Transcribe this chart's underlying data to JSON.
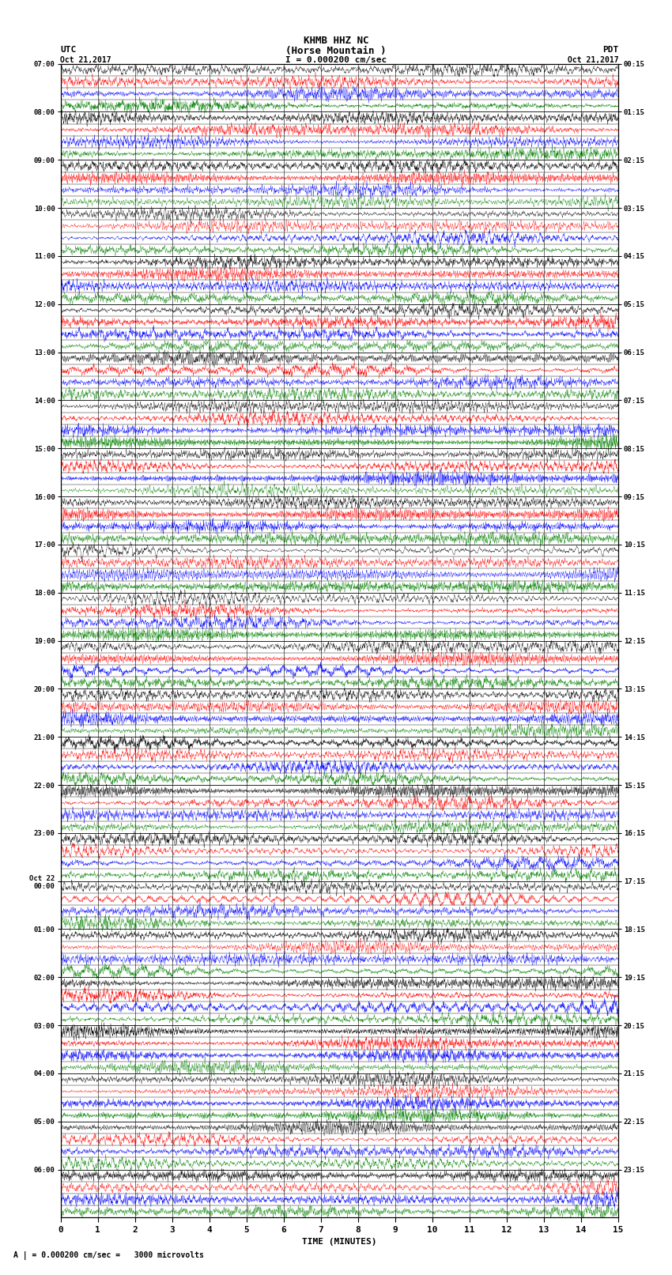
{
  "title_line1": "KHMB HHZ NC",
  "title_line2": "(Horse Mountain )",
  "scale_label": "I = 0.000200 cm/sec",
  "utc_label": "UTC",
  "pdt_label": "PDT",
  "date_left": "Oct 21,2017",
  "date_right": "Oct 21,2017",
  "bottom_note": "A | = 0.000200 cm/sec =   3000 microvolts",
  "xlabel": "TIME (MINUTES)",
  "left_times": [
    "07:00",
    "08:00",
    "09:00",
    "10:00",
    "11:00",
    "12:00",
    "13:00",
    "14:00",
    "15:00",
    "16:00",
    "17:00",
    "18:00",
    "19:00",
    "20:00",
    "21:00",
    "22:00",
    "23:00",
    "Oct 22\n00:00",
    "01:00",
    "02:00",
    "03:00",
    "04:00",
    "05:00",
    "06:00"
  ],
  "right_times": [
    "00:15",
    "01:15",
    "02:15",
    "03:15",
    "04:15",
    "05:15",
    "06:15",
    "07:15",
    "08:15",
    "09:15",
    "10:15",
    "11:15",
    "12:15",
    "13:15",
    "14:15",
    "15:15",
    "16:15",
    "17:15",
    "18:15",
    "19:15",
    "20:15",
    "21:15",
    "22:15",
    "23:15"
  ],
  "n_rows": 24,
  "n_subrows": 4,
  "minutes_per_row": 15,
  "fig_width": 8.5,
  "fig_height": 16.13,
  "bg_color": "#ffffff",
  "subrow_colors": [
    "black",
    "red",
    "blue",
    "green"
  ],
  "trace_amplitude": 0.45,
  "noise_seed": 42,
  "samples_per_minute": 200
}
